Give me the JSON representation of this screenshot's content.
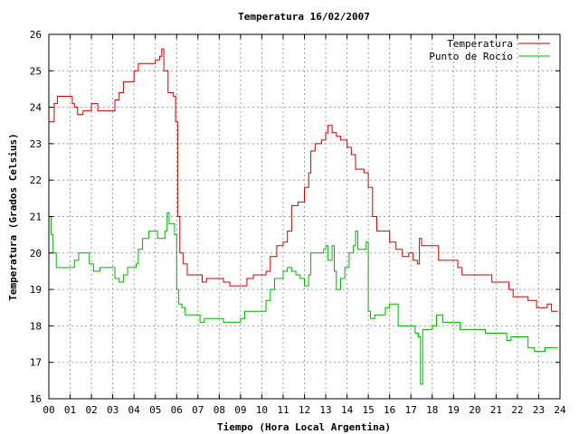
{
  "chart_data": {
    "type": "line",
    "title": "Temperatura 16/02/2007",
    "xlabel": "Tiempo (Hora Local Argentina)",
    "ylabel": "Temperatura (Grados Celsius)",
    "xlim": [
      0,
      24
    ],
    "ylim": [
      16,
      26
    ],
    "x_ticks": [
      "00",
      "01",
      "02",
      "03",
      "04",
      "05",
      "06",
      "07",
      "08",
      "09",
      "10",
      "11",
      "12",
      "13",
      "14",
      "15",
      "16",
      "17",
      "18",
      "19",
      "20",
      "21",
      "22",
      "23",
      "24"
    ],
    "y_ticks": [
      "16",
      "17",
      "18",
      "19",
      "20",
      "21",
      "22",
      "23",
      "24",
      "25",
      "26"
    ],
    "grid": true,
    "legend_position": "top-right",
    "series": [
      {
        "name": "Temperatura",
        "color": "#cc0000",
        "points": [
          [
            0.0,
            23.6
          ],
          [
            0.15,
            23.6
          ],
          [
            0.25,
            24.1
          ],
          [
            0.4,
            24.3
          ],
          [
            0.6,
            24.3
          ],
          [
            1.0,
            24.3
          ],
          [
            1.1,
            24.1
          ],
          [
            1.2,
            24.0
          ],
          [
            1.35,
            23.8
          ],
          [
            1.6,
            23.9
          ],
          [
            1.9,
            23.9
          ],
          [
            2.0,
            24.1
          ],
          [
            2.15,
            24.1
          ],
          [
            2.3,
            23.9
          ],
          [
            2.6,
            23.9
          ],
          [
            3.0,
            23.9
          ],
          [
            3.1,
            24.2
          ],
          [
            3.3,
            24.4
          ],
          [
            3.5,
            24.7
          ],
          [
            3.8,
            24.7
          ],
          [
            4.0,
            25.0
          ],
          [
            4.2,
            25.2
          ],
          [
            4.5,
            25.2
          ],
          [
            4.85,
            25.2
          ],
          [
            5.0,
            25.3
          ],
          [
            5.2,
            25.4
          ],
          [
            5.3,
            25.6
          ],
          [
            5.4,
            25.0
          ],
          [
            5.6,
            24.4
          ],
          [
            5.85,
            24.3
          ],
          [
            5.95,
            23.6
          ],
          [
            6.05,
            21.0
          ],
          [
            6.15,
            20.0
          ],
          [
            6.3,
            19.7
          ],
          [
            6.5,
            19.4
          ],
          [
            6.8,
            19.4
          ],
          [
            7.0,
            19.4
          ],
          [
            7.2,
            19.2
          ],
          [
            7.4,
            19.3
          ],
          [
            7.8,
            19.3
          ],
          [
            8.0,
            19.3
          ],
          [
            8.2,
            19.2
          ],
          [
            8.5,
            19.1
          ],
          [
            8.8,
            19.1
          ],
          [
            9.0,
            19.1
          ],
          [
            9.3,
            19.3
          ],
          [
            9.6,
            19.4
          ],
          [
            10.0,
            19.4
          ],
          [
            10.2,
            19.5
          ],
          [
            10.4,
            19.9
          ],
          [
            10.7,
            20.2
          ],
          [
            11.0,
            20.3
          ],
          [
            11.2,
            20.6
          ],
          [
            11.4,
            21.3
          ],
          [
            11.7,
            21.4
          ],
          [
            12.0,
            21.8
          ],
          [
            12.2,
            22.2
          ],
          [
            12.3,
            22.8
          ],
          [
            12.5,
            23.0
          ],
          [
            12.8,
            23.1
          ],
          [
            13.0,
            23.3
          ],
          [
            13.1,
            23.5
          ],
          [
            13.3,
            23.3
          ],
          [
            13.5,
            23.2
          ],
          [
            13.7,
            23.1
          ],
          [
            14.0,
            22.9
          ],
          [
            14.2,
            22.7
          ],
          [
            14.4,
            22.3
          ],
          [
            14.6,
            22.3
          ],
          [
            14.8,
            22.2
          ],
          [
            15.0,
            21.8
          ],
          [
            15.2,
            21.0
          ],
          [
            15.4,
            20.6
          ],
          [
            15.8,
            20.6
          ],
          [
            16.0,
            20.3
          ],
          [
            16.3,
            20.1
          ],
          [
            16.6,
            19.9
          ],
          [
            16.9,
            20.0
          ],
          [
            17.1,
            19.8
          ],
          [
            17.3,
            19.7
          ],
          [
            17.4,
            20.4
          ],
          [
            17.5,
            20.2
          ],
          [
            17.8,
            20.2
          ],
          [
            18.1,
            20.2
          ],
          [
            18.3,
            19.8
          ],
          [
            18.6,
            19.8
          ],
          [
            19.0,
            19.8
          ],
          [
            19.2,
            19.6
          ],
          [
            19.4,
            19.4
          ],
          [
            19.8,
            19.4
          ],
          [
            20.3,
            19.4
          ],
          [
            20.6,
            19.4
          ],
          [
            20.8,
            19.2
          ],
          [
            21.0,
            19.2
          ],
          [
            21.4,
            19.2
          ],
          [
            21.6,
            19.0
          ],
          [
            21.8,
            18.8
          ],
          [
            22.2,
            18.8
          ],
          [
            22.5,
            18.7
          ],
          [
            22.7,
            18.7
          ],
          [
            22.9,
            18.5
          ],
          [
            23.2,
            18.5
          ],
          [
            23.4,
            18.6
          ],
          [
            23.6,
            18.4
          ],
          [
            23.9,
            18.4
          ]
        ]
      },
      {
        "name": "Punto de Rocío",
        "color": "#00b000",
        "points": [
          [
            0.0,
            21.0
          ],
          [
            0.1,
            20.5
          ],
          [
            0.2,
            20.0
          ],
          [
            0.35,
            19.6
          ],
          [
            0.6,
            19.6
          ],
          [
            0.9,
            19.6
          ],
          [
            1.1,
            19.6
          ],
          [
            1.2,
            19.8
          ],
          [
            1.4,
            20.0
          ],
          [
            1.8,
            20.0
          ],
          [
            1.9,
            19.7
          ],
          [
            2.1,
            19.5
          ],
          [
            2.4,
            19.6
          ],
          [
            2.9,
            19.6
          ],
          [
            3.1,
            19.3
          ],
          [
            3.3,
            19.2
          ],
          [
            3.5,
            19.4
          ],
          [
            3.7,
            19.6
          ],
          [
            4.1,
            19.7
          ],
          [
            4.2,
            20.1
          ],
          [
            4.4,
            20.4
          ],
          [
            4.7,
            20.6
          ],
          [
            5.0,
            20.6
          ],
          [
            5.1,
            20.4
          ],
          [
            5.3,
            20.4
          ],
          [
            5.45,
            20.6
          ],
          [
            5.55,
            21.1
          ],
          [
            5.65,
            20.8
          ],
          [
            5.9,
            20.5
          ],
          [
            6.0,
            19.0
          ],
          [
            6.1,
            18.6
          ],
          [
            6.25,
            18.5
          ],
          [
            6.4,
            18.3
          ],
          [
            6.8,
            18.3
          ],
          [
            7.0,
            18.3
          ],
          [
            7.1,
            18.1
          ],
          [
            7.3,
            18.2
          ],
          [
            7.6,
            18.2
          ],
          [
            8.0,
            18.2
          ],
          [
            8.2,
            18.1
          ],
          [
            8.5,
            18.1
          ],
          [
            8.8,
            18.1
          ],
          [
            9.0,
            18.2
          ],
          [
            9.2,
            18.4
          ],
          [
            9.6,
            18.4
          ],
          [
            10.0,
            18.4
          ],
          [
            10.2,
            18.7
          ],
          [
            10.4,
            19.0
          ],
          [
            10.6,
            19.3
          ],
          [
            11.0,
            19.5
          ],
          [
            11.2,
            19.6
          ],
          [
            11.4,
            19.5
          ],
          [
            11.6,
            19.4
          ],
          [
            11.8,
            19.3
          ],
          [
            12.0,
            19.1
          ],
          [
            12.2,
            19.4
          ],
          [
            12.3,
            20.0
          ],
          [
            12.6,
            20.0
          ],
          [
            12.9,
            20.1
          ],
          [
            13.0,
            20.2
          ],
          [
            13.1,
            19.8
          ],
          [
            13.3,
            20.2
          ],
          [
            13.4,
            19.5
          ],
          [
            13.5,
            19.0
          ],
          [
            13.7,
            19.3
          ],
          [
            13.9,
            19.6
          ],
          [
            14.1,
            20.0
          ],
          [
            14.3,
            20.2
          ],
          [
            14.4,
            20.6
          ],
          [
            14.5,
            20.1
          ],
          [
            14.8,
            20.1
          ],
          [
            14.9,
            20.3
          ],
          [
            15.0,
            18.4
          ],
          [
            15.1,
            18.2
          ],
          [
            15.3,
            18.3
          ],
          [
            15.6,
            18.3
          ],
          [
            15.8,
            18.5
          ],
          [
            16.0,
            18.6
          ],
          [
            16.2,
            18.6
          ],
          [
            16.4,
            18.0
          ],
          [
            16.7,
            18.0
          ],
          [
            17.0,
            18.0
          ],
          [
            17.2,
            17.8
          ],
          [
            17.35,
            17.7
          ],
          [
            17.45,
            16.4
          ],
          [
            17.55,
            17.9
          ],
          [
            17.8,
            17.9
          ],
          [
            18.0,
            18.0
          ],
          [
            18.2,
            18.3
          ],
          [
            18.5,
            18.1
          ],
          [
            19.0,
            18.1
          ],
          [
            19.3,
            17.9
          ],
          [
            19.6,
            17.9
          ],
          [
            20.0,
            17.9
          ],
          [
            20.5,
            17.8
          ],
          [
            20.9,
            17.8
          ],
          [
            21.3,
            17.8
          ],
          [
            21.5,
            17.6
          ],
          [
            21.7,
            17.7
          ],
          [
            22.0,
            17.7
          ],
          [
            22.3,
            17.7
          ],
          [
            22.5,
            17.4
          ],
          [
            22.8,
            17.3
          ],
          [
            23.1,
            17.3
          ],
          [
            23.3,
            17.4
          ],
          [
            23.6,
            17.4
          ],
          [
            23.9,
            17.4
          ]
        ]
      }
    ]
  }
}
